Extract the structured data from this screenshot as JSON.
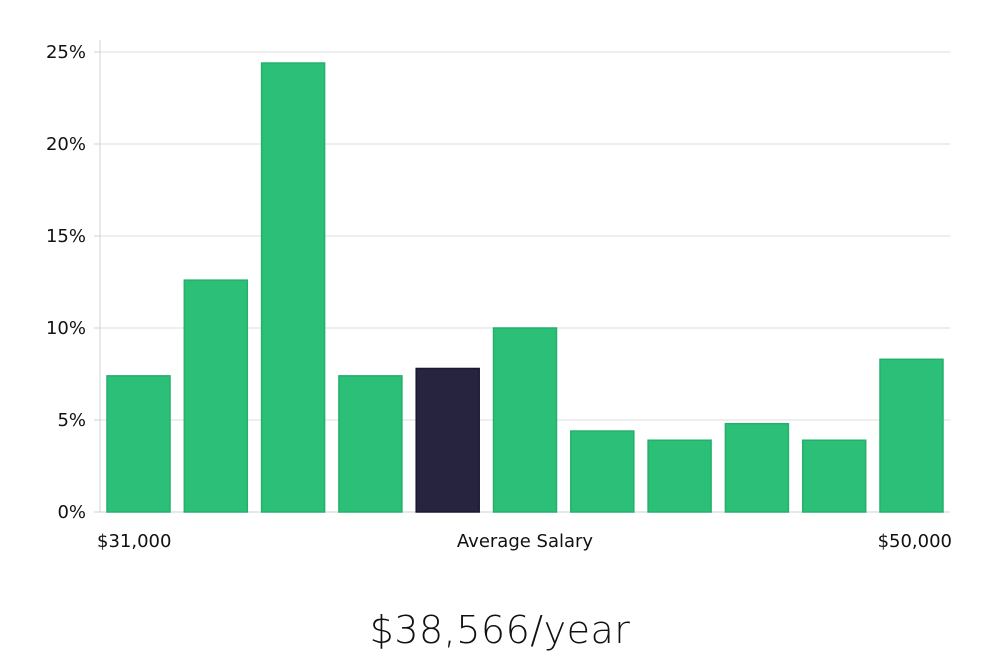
{
  "chart_data": {
    "type": "bar",
    "title": "",
    "xlabel": "Average Salary",
    "ylabel": "",
    "ylim": [
      0,
      25
    ],
    "y_ticks": [
      "0%",
      "5%",
      "10%",
      "15%",
      "20%",
      "25%"
    ],
    "y_tick_values": [
      0,
      5,
      10,
      15,
      20,
      25
    ],
    "x_range_labels": {
      "min": "$31,000",
      "center": "Average Salary",
      "max": "$50,000"
    },
    "values": [
      7.4,
      12.6,
      24.4,
      7.4,
      7.8,
      10.0,
      4.4,
      3.9,
      4.8,
      3.9,
      8.3
    ],
    "highlight_index": 4,
    "grid": true,
    "colors": {
      "bar": "#2bbf77",
      "bar_border": "#24b06c",
      "highlight": "#27243f",
      "highlight_border": "#1a1830"
    }
  },
  "summary": {
    "average_salary": "$38,566/year"
  }
}
